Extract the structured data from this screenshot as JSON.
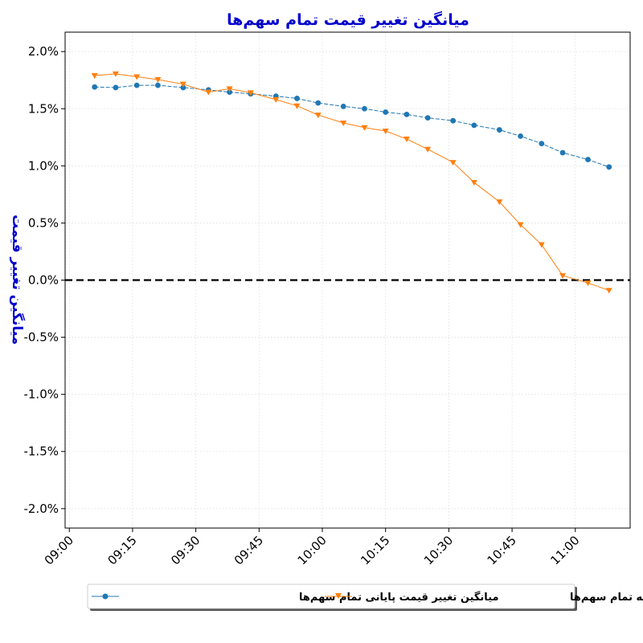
{
  "chart_data": {
    "type": "line",
    "title": "میانگین تغییر قیمت تمام سهم‌ها",
    "ylabel": "میانگین تغییر قیمت",
    "xlabel": "",
    "x_ticks": [
      "09:00",
      "09:15",
      "09:30",
      "09:45",
      "10:00",
      "10:15",
      "10:30",
      "10:45",
      "11:00"
    ],
    "y_ticks": [
      "2.0%",
      "1.5%",
      "1.0%",
      "0.5%",
      "0.0%",
      "-0.5%",
      "-1.0%",
      "-1.5%",
      "-2.0%"
    ],
    "xlim": [
      "08:59",
      "11:13"
    ],
    "ylim": [
      -2.17,
      2.17
    ],
    "grid": true,
    "reference_line": 0.0,
    "legend_position": "bottom-center",
    "series": [
      {
        "name": "میانگین تغییر قیمت پایانی تمام سهم‌ها",
        "color": "#1f77b4",
        "marker": "circle",
        "x": [
          "09:06",
          "09:11",
          "09:16",
          "09:21",
          "09:27",
          "09:33",
          "09:38",
          "09:43",
          "09:49",
          "09:54",
          "09:59",
          "10:05",
          "10:10",
          "10:15",
          "10:20",
          "10:25",
          "10:31",
          "10:36",
          "10:42",
          "10:47",
          "10:52",
          "10:57",
          "11:03",
          "11:08"
        ],
        "values": [
          1.69,
          1.685,
          1.705,
          1.705,
          1.685,
          1.665,
          1.645,
          1.63,
          1.61,
          1.59,
          1.55,
          1.52,
          1.5,
          1.47,
          1.45,
          1.42,
          1.395,
          1.355,
          1.315,
          1.26,
          1.195,
          1.115,
          1.055,
          0.99
        ]
      },
      {
        "name": "میانگین تغییر قیمت آخرین معامله تمام سهم‌ها",
        "color": "#ff7f0e",
        "marker": "triangle-down",
        "x": [
          "09:06",
          "09:11",
          "09:16",
          "09:21",
          "09:27",
          "09:33",
          "09:38",
          "09:43",
          "09:49",
          "09:54",
          "09:59",
          "10:05",
          "10:10",
          "10:15",
          "10:20",
          "10:25",
          "10:31",
          "10:36",
          "10:42",
          "10:47",
          "10:52",
          "10:57",
          "11:03",
          "11:08"
        ],
        "values": [
          1.79,
          1.805,
          1.78,
          1.755,
          1.715,
          1.645,
          1.675,
          1.64,
          1.58,
          1.525,
          1.445,
          1.375,
          1.335,
          1.305,
          1.235,
          1.145,
          1.03,
          0.855,
          0.685,
          0.485,
          0.31,
          0.04,
          -0.025,
          -0.09
        ]
      }
    ]
  }
}
